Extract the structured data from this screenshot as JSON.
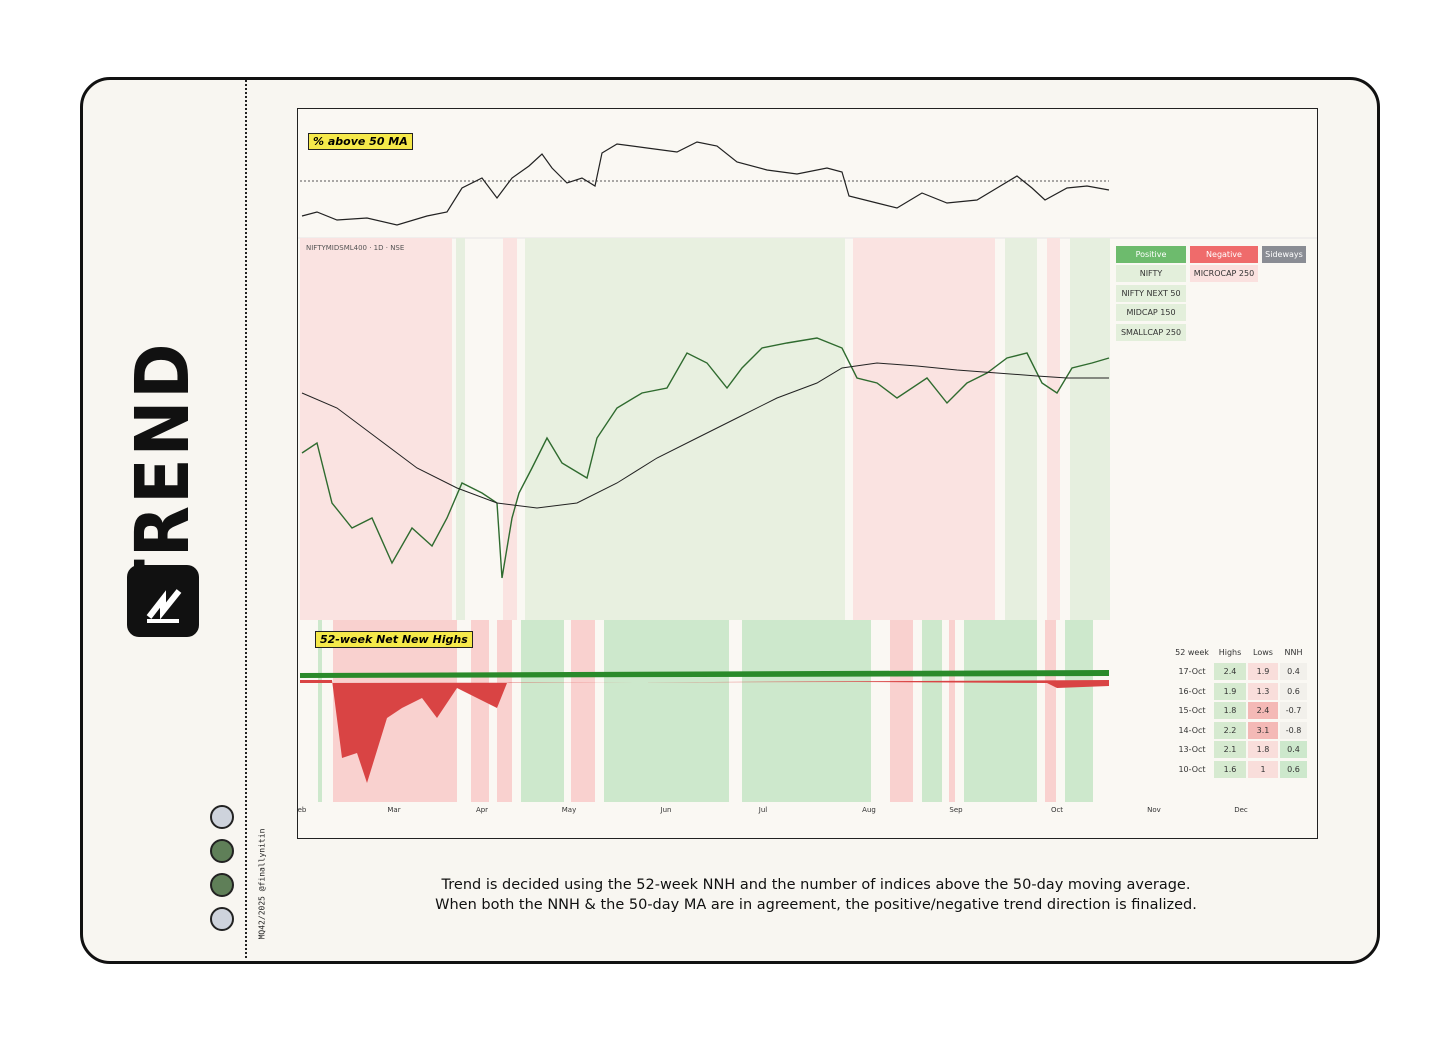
{
  "sidebar": {
    "title": "TREND",
    "credit": "MQ42/2025 @finallynitin"
  },
  "panels": {
    "breadth_label": "% above 50 MA",
    "symbol": "NIFTYMIDSML400 · 1D · NSE",
    "nnh_label": "52-week Net New Highs"
  },
  "trend_table": {
    "headers": [
      "Positive",
      "Negative",
      "Sideways"
    ],
    "columns": [
      [
        "NIFTY",
        "NIFTY NEXT 50",
        "MIDCAP 150",
        "SMALLCAP 250"
      ],
      [
        "MICROCAP 250"
      ],
      []
    ]
  },
  "nnh_table": {
    "headers": [
      "52 week",
      "Highs",
      "Lows",
      "NNH"
    ],
    "rows": [
      [
        "17-Oct",
        "2.4",
        "1.9",
        "0.4"
      ],
      [
        "16-Oct",
        "1.9",
        "1.3",
        "0.6"
      ],
      [
        "15-Oct",
        "1.8",
        "2.4",
        "-0.7"
      ],
      [
        "14-Oct",
        "2.2",
        "3.1",
        "-0.8"
      ],
      [
        "13-Oct",
        "2.1",
        "1.8",
        "0.4"
      ],
      [
        "10-Oct",
        "1.6",
        "1",
        "0.6"
      ]
    ]
  },
  "x_axis": [
    "eb",
    "Mar",
    "Apr",
    "May",
    "Jun",
    "Jul",
    "Aug",
    "Sep",
    "Oct",
    "Nov",
    "Dec"
  ],
  "caption": [
    "Trend is decided using the 52-week NNH and the number of indices above the 50-day moving average.",
    "When both the NNH & the 50-day MA are in agreement, the positive/negative trend direction is finalized."
  ]
}
